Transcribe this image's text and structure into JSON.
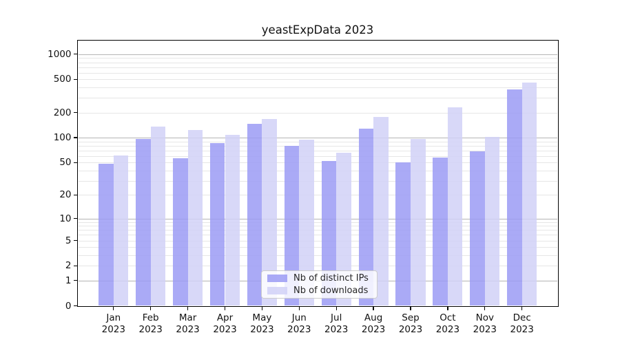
{
  "title": "yeastExpData 2023",
  "legend": {
    "items": [
      "Nb of distinct IPs",
      "Nb of downloads"
    ]
  },
  "chart_data": {
    "type": "bar",
    "title": "yeastExpData 2023",
    "categories": [
      "Jan 2023",
      "Feb 2023",
      "Mar 2023",
      "Apr 2023",
      "May 2023",
      "Jun 2023",
      "Jul 2023",
      "Aug 2023",
      "Sep 2023",
      "Oct 2023",
      "Nov 2023",
      "Dec 2023"
    ],
    "x_tick_months": [
      "Jan",
      "Feb",
      "Mar",
      "Apr",
      "May",
      "Jun",
      "Jul",
      "Aug",
      "Sep",
      "Oct",
      "Nov",
      "Dec"
    ],
    "x_tick_year": "2023",
    "series": [
      {
        "name": "Nb of distinct IPs",
        "color": "#9b9bf5",
        "values": [
          48,
          97,
          57,
          86,
          147,
          80,
          52,
          129,
          50,
          58,
          69,
          378
        ]
      },
      {
        "name": "Nb of downloads",
        "color": "#d1d1f7",
        "values": [
          61,
          135,
          124,
          109,
          169,
          94,
          66,
          178,
          97,
          232,
          103,
          457
        ]
      }
    ],
    "xlabel": "",
    "ylabel": "",
    "y_scale": "log10(value+1)",
    "y_ticks": [
      0,
      1,
      2,
      5,
      10,
      20,
      50,
      100,
      200,
      500,
      1000
    ],
    "y_major_gridlines": [
      1,
      10,
      100,
      1000
    ],
    "ylim": [
      0,
      1450
    ],
    "grid": "horizontal major and minor",
    "legend_position": "lower center",
    "colors": {
      "bar_distinct_ips": "#9b9bf5",
      "bar_downloads": "#d1d1f7",
      "grid_major": "#b4b4b4",
      "grid_minor": "#e6e6e6",
      "axis": "#000000",
      "text": "#111111"
    }
  }
}
